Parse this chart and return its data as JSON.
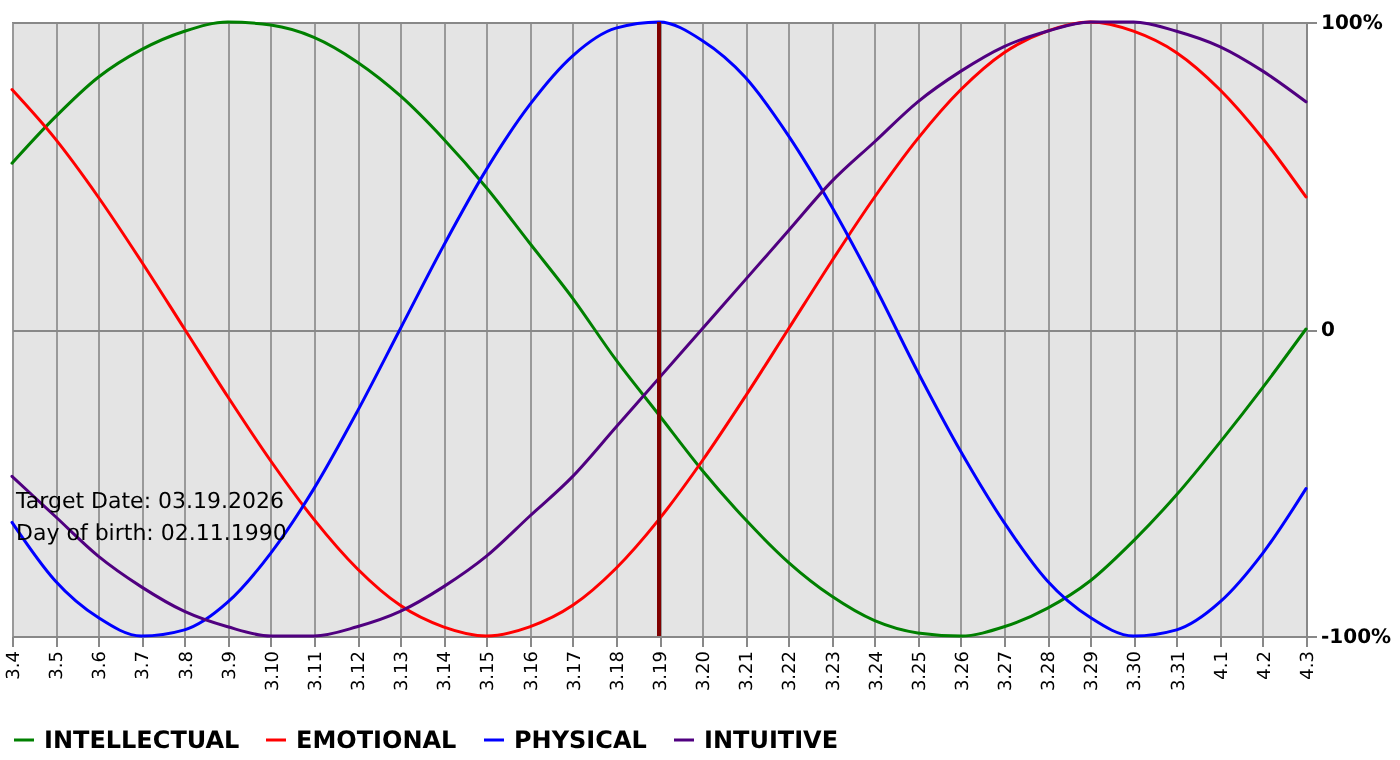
{
  "chart_data": {
    "type": "line",
    "categories": [
      "3.4",
      "3.5",
      "3.6",
      "3.7",
      "3.8",
      "3.9",
      "3.10",
      "3.11",
      "3.12",
      "3.13",
      "3.14",
      "3.15",
      "3.16",
      "3.17",
      "3.18",
      "3.19",
      "3.20",
      "3.21",
      "3.22",
      "3.23",
      "3.24",
      "3.25",
      "3.26",
      "3.27",
      "3.28",
      "3.29",
      "3.30",
      "3.31",
      "4.1",
      "4.2",
      "4.3"
    ],
    "series": [
      {
        "name": "INTELLECTUAL",
        "color": "#008000",
        "values": [
          54,
          69,
          82,
          91,
          97,
          100,
          99,
          95,
          87,
          76,
          62,
          46,
          28,
          10,
          -10,
          -28,
          -46,
          -62,
          -76,
          -87,
          -95,
          -99,
          -100,
          -97,
          -91,
          -82,
          -69,
          -54,
          -37,
          -19,
          0
        ]
      },
      {
        "name": "EMOTIONAL",
        "color": "#ff0000",
        "values": [
          78,
          62,
          43,
          22,
          0,
          -22,
          -43,
          -62,
          -78,
          -90,
          -97,
          -100,
          -97,
          -90,
          -78,
          -62,
          -43,
          -22,
          0,
          22,
          43,
          62,
          78,
          90,
          97,
          100,
          97,
          90,
          78,
          62,
          43
        ]
      },
      {
        "name": "PHYSICAL",
        "color": "#0000ff",
        "values": [
          -63,
          -82,
          -94,
          -100,
          -98,
          -89,
          -73,
          -52,
          -27,
          0,
          27,
          52,
          73,
          89,
          98,
          100,
          94,
          82,
          63,
          40,
          14,
          -14,
          -40,
          -63,
          -82,
          -94,
          -100,
          -98,
          -89,
          -73,
          -52
        ]
      },
      {
        "name": "INTUITIVE",
        "color": "#500080",
        "values": [
          -48,
          -61,
          -74,
          -84,
          -92,
          -97,
          -100,
          -100,
          -97,
          -92,
          -84,
          -74,
          -61,
          -48,
          -32,
          -16,
          0,
          16,
          32,
          48,
          61,
          74,
          84,
          92,
          97,
          100,
          100,
          97,
          92,
          84,
          74
        ]
      }
    ],
    "ylim": [
      -100,
      100
    ],
    "yticks": [
      {
        "value": -100,
        "label": "-100%"
      },
      0,
      {
        "value": 100,
        "label": "100%"
      }
    ],
    "grid": true,
    "legend": "bottom",
    "ref_lines": [
      {
        "axis": "x",
        "value": "3.19",
        "color": "#800000"
      }
    ],
    "annotations": [
      "Target Date: 03.19.2026",
      "Day of birth: 02.11.1990"
    ]
  }
}
